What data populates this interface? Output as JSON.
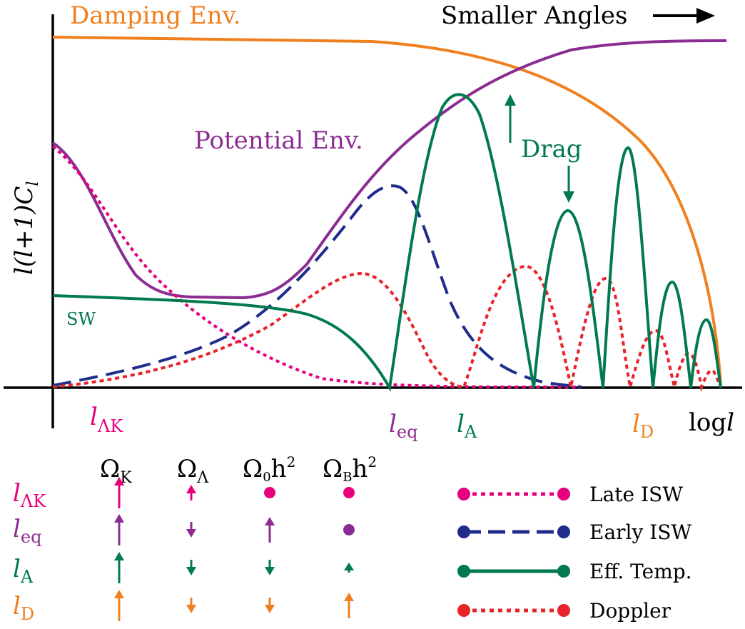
{
  "colors": {
    "axis": "#000000",
    "magenta": "#e6007e",
    "purple": "#8b2c92",
    "green": "#007a4e",
    "orange": "#f07f1e",
    "navy": "#202c8c",
    "red": "#e8232a"
  },
  "labels": {
    "damping_env": "Damping Env.",
    "smaller_angles": "Smaller Angles",
    "potential_env": "Potential Env.",
    "drag": "Drag",
    "sw": "SW",
    "y_axis": "l(l+1)C",
    "y_axis_sub": "l",
    "x_axis_log": "log",
    "x_axis_l": "l"
  },
  "scale_markers": [
    {
      "id": "lambda-k",
      "base": "l",
      "sub": "ΛK",
      "color": "magenta"
    },
    {
      "id": "eq",
      "base": "l",
      "sub": "eq",
      "color": "purple"
    },
    {
      "id": "a",
      "base": "l",
      "sub": "A",
      "color": "green"
    },
    {
      "id": "d",
      "base": "l",
      "sub": "D",
      "color": "orange"
    }
  ],
  "table": {
    "columns": [
      {
        "base": "Ω",
        "sub": "K",
        "suffix": ""
      },
      {
        "base": "Ω",
        "sub": "Λ",
        "suffix": ""
      },
      {
        "base": "Ω",
        "sub": "0",
        "suffix": "h",
        "sup": "2"
      },
      {
        "base": "Ω",
        "sub": "B",
        "suffix": "h",
        "sup": "2"
      }
    ],
    "rows": [
      {
        "base": "l",
        "sub": "ΛK",
        "color": "magenta",
        "cells": [
          "up-large",
          "up-small",
          "dot",
          "dot"
        ]
      },
      {
        "base": "l",
        "sub": "eq",
        "color": "purple",
        "cells": [
          "up-large",
          "down-small",
          "up-medium",
          "dot"
        ]
      },
      {
        "base": "l",
        "sub": "A",
        "color": "green",
        "cells": [
          "up-large",
          "down-small",
          "down-small",
          "up-tiny"
        ]
      },
      {
        "base": "l",
        "sub": "D",
        "color": "orange",
        "cells": [
          "up-large",
          "down-small",
          "down-small",
          "up-medium"
        ]
      }
    ]
  },
  "legend": [
    {
      "label": "Late ISW",
      "color": "magenta",
      "style": "dotted"
    },
    {
      "label": "Early ISW",
      "color": "navy",
      "style": "dashed"
    },
    {
      "label": "Eff. Temp.",
      "color": "green",
      "style": "solid"
    },
    {
      "label": "Doppler",
      "color": "red",
      "style": "dotted"
    }
  ]
}
